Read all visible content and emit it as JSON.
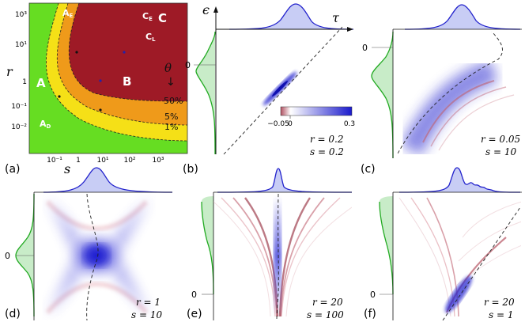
{
  "panel_a": {
    "label": "(a)",
    "x_axis_label": "s",
    "y_axis_label": "r",
    "x_ticks": [
      "10⁻¹",
      "1",
      "10¹",
      "10²",
      "10³"
    ],
    "y_ticks": [
      "10³",
      "10¹",
      "1",
      "10⁻¹",
      "10⁻²"
    ],
    "regions": {
      "A": "A",
      "B": "B",
      "C": "C",
      "AE": "A",
      "AE_sub": "E",
      "AD": "A",
      "AD_sub": "D",
      "CE": "C",
      "CE_sub": "E",
      "CL": "C",
      "CL_sub": "L"
    },
    "theta_label": "θ",
    "theta_arrow": "↓",
    "contour_labels": [
      "50%",
      "5%",
      "1%"
    ],
    "colors": {
      "green": "#66dd22",
      "yellow": "#f5e017",
      "orange": "#e86a1c",
      "red": "#9e1a26"
    }
  },
  "panel_b": {
    "label": "(b)",
    "epsilon": "ϵ",
    "tau": "τ",
    "zero_tick": "0",
    "colorbar_ticks": [
      "−0.05",
      "0",
      "0.3"
    ],
    "params": {
      "r": "r = 0.2",
      "s": "s = 0.2"
    }
  },
  "panel_c": {
    "label": "(c)",
    "zero_tick": "0",
    "params": {
      "r": "r = 0.05",
      "s": "s = 10"
    }
  },
  "panel_d": {
    "label": "(d)",
    "zero_tick": "0",
    "params": {
      "r": "r = 1",
      "s": "s = 10"
    }
  },
  "panel_e": {
    "label": "(e)",
    "zero_tick": "0",
    "params": {
      "r": "r = 20",
      "s": "s = 100"
    }
  },
  "panel_f": {
    "label": "(f)",
    "zero_tick": "0",
    "params": {
      "r": "r = 20",
      "s": "s = 1"
    }
  },
  "colors": {
    "blue": "#2222cc",
    "blue_fill": "#c8cdf5",
    "green_line": "#22aa22",
    "green_fill": "#c8ecc8",
    "pink": "#c06070"
  }
}
